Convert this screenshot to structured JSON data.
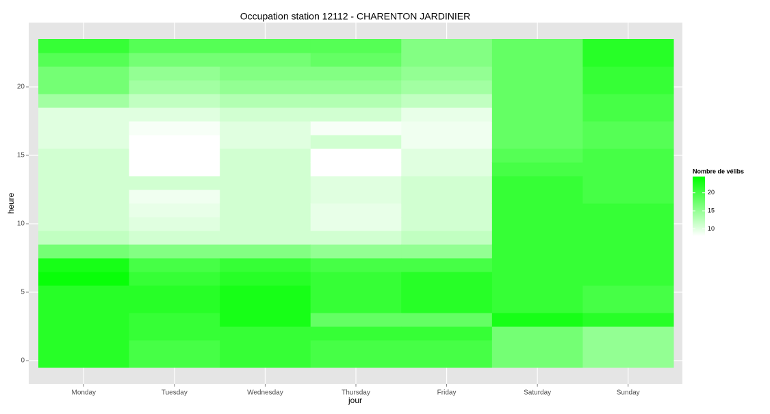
{
  "chart_data": {
    "type": "heatmap",
    "title": "Occupation station 12112 - CHARENTON JARDINIER",
    "xlabel": "jour",
    "ylabel": "heure",
    "categories": [
      "Monday",
      "Tuesday",
      "Wednesday",
      "Thursday",
      "Friday",
      "Saturday",
      "Sunday"
    ],
    "y": [
      0,
      1,
      2,
      3,
      4,
      5,
      6,
      7,
      8,
      9,
      10,
      11,
      12,
      13,
      14,
      15,
      16,
      17,
      18,
      19,
      20,
      21,
      22,
      23
    ],
    "values": [
      [
        22,
        22,
        22,
        22,
        22,
        22,
        24,
        23,
        17,
        12,
        11,
        11,
        11,
        11,
        11,
        11,
        10,
        10,
        10,
        14,
        17,
        17,
        19,
        21
      ],
      [
        20,
        20,
        21,
        21,
        22,
        22,
        21,
        20,
        16,
        11,
        10,
        9.5,
        9,
        11,
        8,
        8,
        8,
        8.5,
        10,
        12,
        14,
        15,
        17,
        19
      ],
      [
        21,
        21,
        21,
        23,
        23,
        23,
        22,
        21,
        16,
        11,
        11,
        11,
        11,
        11,
        11,
        11,
        10,
        10,
        11,
        13,
        15,
        16,
        17,
        19
      ],
      [
        20,
        20,
        21,
        18,
        21,
        21,
        21,
        20,
        15,
        11,
        9.5,
        9.5,
        10,
        10,
        8,
        8,
        11,
        8.5,
        11,
        13,
        15,
        16,
        18,
        19
      ],
      [
        20,
        20,
        21,
        18,
        22,
        22,
        22,
        20,
        15,
        12,
        11,
        11,
        11,
        11,
        10,
        10,
        9,
        9,
        9.5,
        12,
        14,
        15,
        16,
        16
      ],
      [
        17,
        17,
        17,
        23,
        21,
        21,
        21,
        21,
        21,
        21,
        21,
        21,
        21,
        21,
        20,
        19,
        18,
        18,
        18,
        18,
        18,
        18,
        18,
        18
      ],
      [
        15,
        15,
        15,
        22,
        20,
        20,
        21,
        21,
        21,
        21,
        21,
        21,
        20,
        20,
        20,
        20,
        19,
        19,
        20,
        20,
        21,
        21,
        22,
        22
      ]
    ],
    "ylim": [
      -0.5,
      23.5
    ],
    "yticks": [
      0,
      5,
      10,
      15,
      20
    ],
    "grid": true,
    "colorbar": {
      "title": "Nombre de vélibs",
      "lim": [
        8,
        24.5
      ],
      "ticks": [
        10,
        15,
        20
      ],
      "low": "#ffffff",
      "high": "#00ff00"
    }
  }
}
